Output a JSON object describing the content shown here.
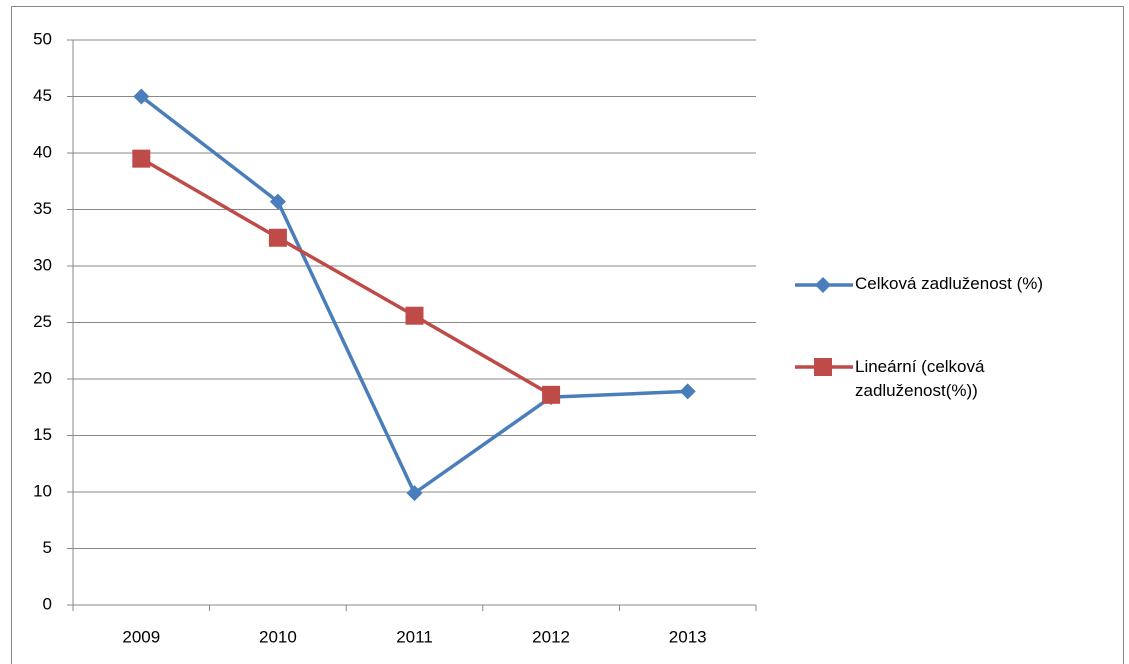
{
  "chart_data": {
    "type": "line",
    "categories": [
      "2009",
      "2010",
      "2011",
      "2012",
      "2013"
    ],
    "series": [
      {
        "name": "Celková zadluženost (%)",
        "color": "#4a7ebb",
        "marker": "diamond",
        "values": [
          45,
          35.7,
          9.9,
          18.4,
          18.9
        ]
      },
      {
        "name": "Lineární (celková zadluženost(%))",
        "color": "#be4b48",
        "marker": "square",
        "values": [
          39.5,
          32.5,
          25.6,
          18.6,
          null
        ]
      }
    ],
    "ylim": [
      0,
      50
    ],
    "yticks": [
      0,
      5,
      10,
      15,
      20,
      25,
      30,
      35,
      40,
      45,
      50
    ],
    "grid": true,
    "legend": "right"
  }
}
